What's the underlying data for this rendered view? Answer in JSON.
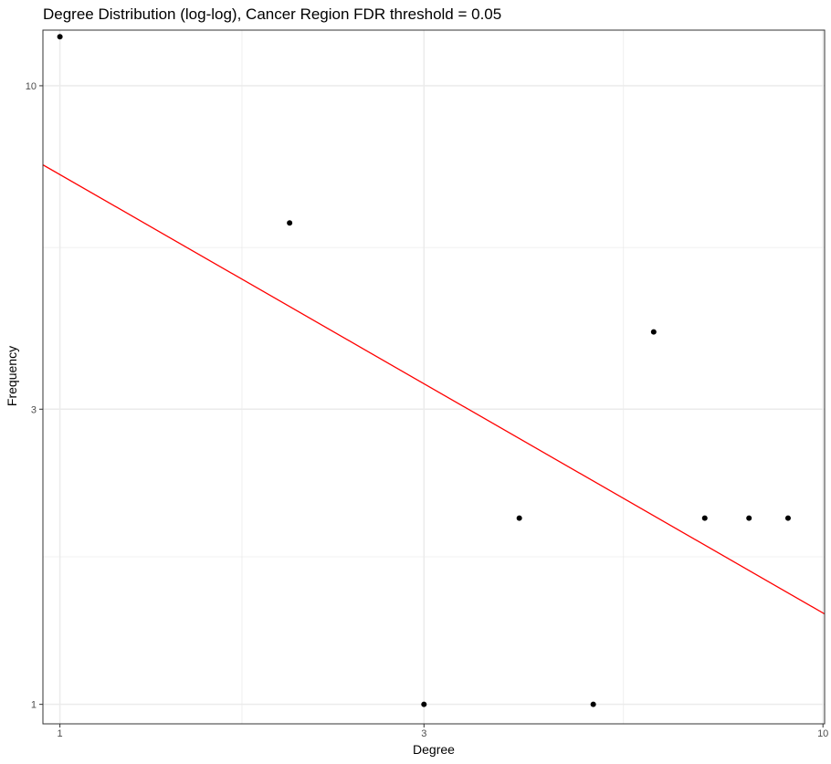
{
  "chart_data": {
    "type": "scatter",
    "title": "Degree Distribution (log-log), Cancer Region FDR threshold = 0.05",
    "xlabel": "Degree",
    "ylabel": "Frequency",
    "x_scale": "log",
    "y_scale": "log",
    "xlim": [
      0.95,
      10.05
    ],
    "ylim": [
      0.93,
      12.3
    ],
    "x_ticks": [
      1,
      3,
      10
    ],
    "y_ticks": [
      1,
      3,
      10
    ],
    "x_tick_labels": [
      "1",
      "3",
      "10"
    ],
    "y_tick_labels": [
      "1",
      "3",
      "10"
    ],
    "x_minor_ticks": [
      1.732,
      5.477
    ],
    "y_minor_ticks": [
      1.732,
      5.477
    ],
    "grid": true,
    "legend": "none",
    "points": [
      {
        "x": 1,
        "y": 12
      },
      {
        "x": 2,
        "y": 6
      },
      {
        "x": 3,
        "y": 1
      },
      {
        "x": 4,
        "y": 2
      },
      {
        "x": 5,
        "y": 1
      },
      {
        "x": 6,
        "y": 4
      },
      {
        "x": 7,
        "y": 2
      },
      {
        "x": 8,
        "y": 2
      },
      {
        "x": 9,
        "y": 2
      }
    ],
    "fit_line": {
      "x": [
        0.95,
        10.05
      ],
      "y": [
        7.45,
        1.4
      ],
      "color": "#ff0000"
    },
    "point_color": "#000000",
    "grid_color": "#ebebeb",
    "panel_border_color": "#333333"
  }
}
